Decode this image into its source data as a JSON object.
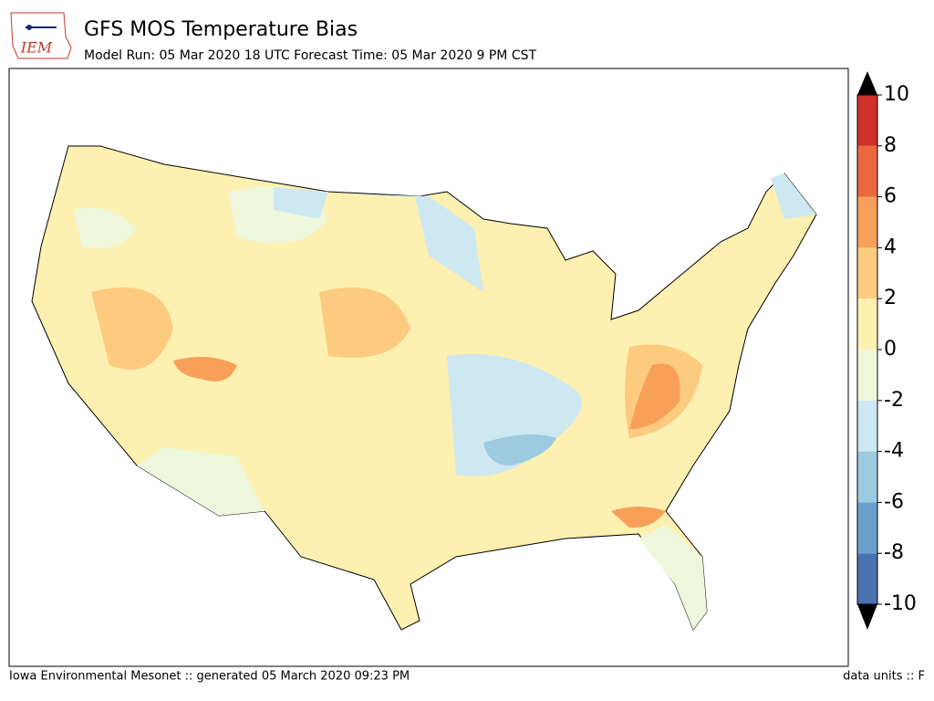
{
  "header": {
    "logo": "IEM",
    "title": "GFS MOS Temperature Bias",
    "subtitle": "Model Run: 05 Mar 2020 18 UTC Forecast Time: 05 Mar 2020 9 PM CST"
  },
  "colorbar": {
    "lim": [
      -10,
      10
    ],
    "ticks": [
      -10,
      -8,
      -6,
      -4,
      -2,
      0,
      2,
      4,
      6,
      8,
      10
    ],
    "colors": [
      "#4a72b0",
      "#6aa0cb",
      "#9ccae0",
      "#cde8f0",
      "#eef7dc",
      "#fdf0b0",
      "#fccb80",
      "#f8a05a",
      "#ea6840",
      "#d0302a"
    ],
    "extend_color": "#000000"
  },
  "footer": {
    "left": "Iowa Environmental Mesonet :: generated 05 March 2020 09:23 PM",
    "right": "data units :: F"
  }
}
